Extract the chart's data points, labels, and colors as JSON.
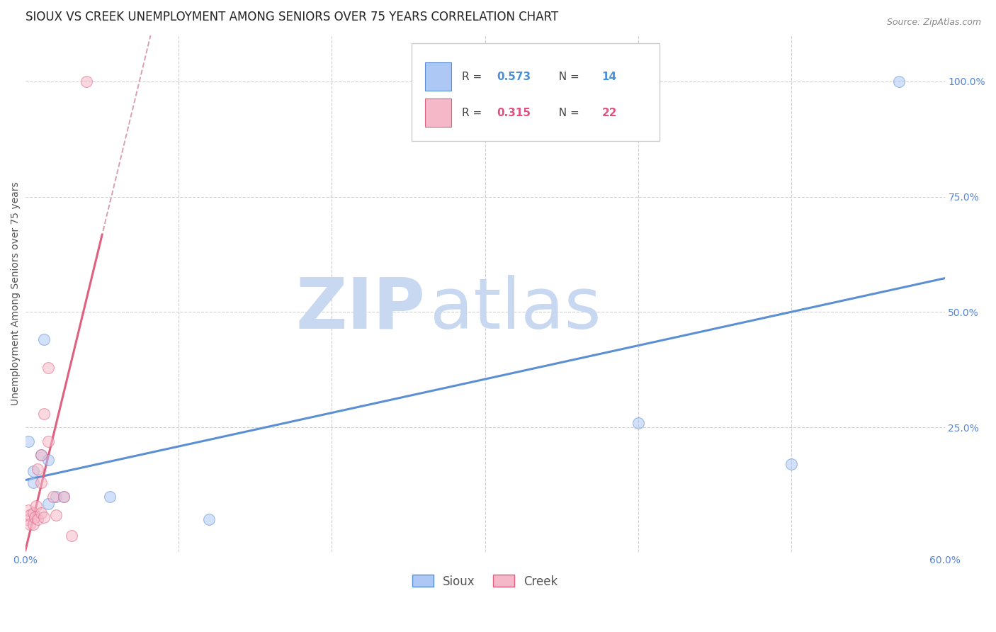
{
  "title": "SIOUX VS CREEK UNEMPLOYMENT AMONG SENIORS OVER 75 YEARS CORRELATION CHART",
  "source": "Source: ZipAtlas.com",
  "ylabel": "Unemployment Among Seniors over 75 years",
  "xlim": [
    0.0,
    0.6
  ],
  "ylim": [
    -0.02,
    1.1
  ],
  "xtick_labels": [
    "0.0%",
    "",
    "",
    "",
    "",
    "",
    "60.0%"
  ],
  "xtick_values": [
    0.0,
    0.1,
    0.2,
    0.3,
    0.4,
    0.5,
    0.6
  ],
  "ytick_labels": [
    "100.0%",
    "75.0%",
    "50.0%",
    "25.0%"
  ],
  "ytick_values": [
    1.0,
    0.75,
    0.5,
    0.25
  ],
  "grid_color": "#d0d0d0",
  "background_color": "#ffffff",
  "sioux_color": "#adc8f5",
  "sioux_edge_color": "#5b8fd4",
  "creek_color": "#f5b8c8",
  "creek_edge_color": "#e06080",
  "sioux_R": 0.573,
  "sioux_N": 14,
  "creek_R": 0.315,
  "creek_N": 22,
  "legend_R_color_sioux": "#4a90d9",
  "legend_R_color_creek": "#e05080",
  "sioux_x": [
    0.002,
    0.005,
    0.005,
    0.01,
    0.012,
    0.015,
    0.015,
    0.02,
    0.025,
    0.055,
    0.12,
    0.4,
    0.5,
    0.57
  ],
  "sioux_y": [
    0.22,
    0.155,
    0.13,
    0.19,
    0.44,
    0.18,
    0.085,
    0.1,
    0.1,
    0.1,
    0.05,
    0.26,
    0.17,
    1.0
  ],
  "creek_x": [
    0.001,
    0.002,
    0.003,
    0.003,
    0.005,
    0.005,
    0.006,
    0.007,
    0.008,
    0.008,
    0.01,
    0.01,
    0.01,
    0.012,
    0.012,
    0.015,
    0.015,
    0.018,
    0.02,
    0.025,
    0.03,
    0.04
  ],
  "creek_y": [
    0.05,
    0.07,
    0.06,
    0.04,
    0.04,
    0.065,
    0.055,
    0.08,
    0.16,
    0.05,
    0.065,
    0.13,
    0.19,
    0.055,
    0.28,
    0.22,
    0.38,
    0.1,
    0.06,
    0.1,
    0.015,
    1.0
  ],
  "watermark_zip": "ZIP",
  "watermark_atlas": "atlas",
  "watermark_color_zip": "#c8d8f0",
  "watermark_color_atlas": "#c8d8f0",
  "title_fontsize": 12,
  "axis_label_fontsize": 10,
  "tick_fontsize": 10,
  "marker_size": 130,
  "marker_alpha": 0.55,
  "title_color": "#222222",
  "axis_color": "#5585d8"
}
